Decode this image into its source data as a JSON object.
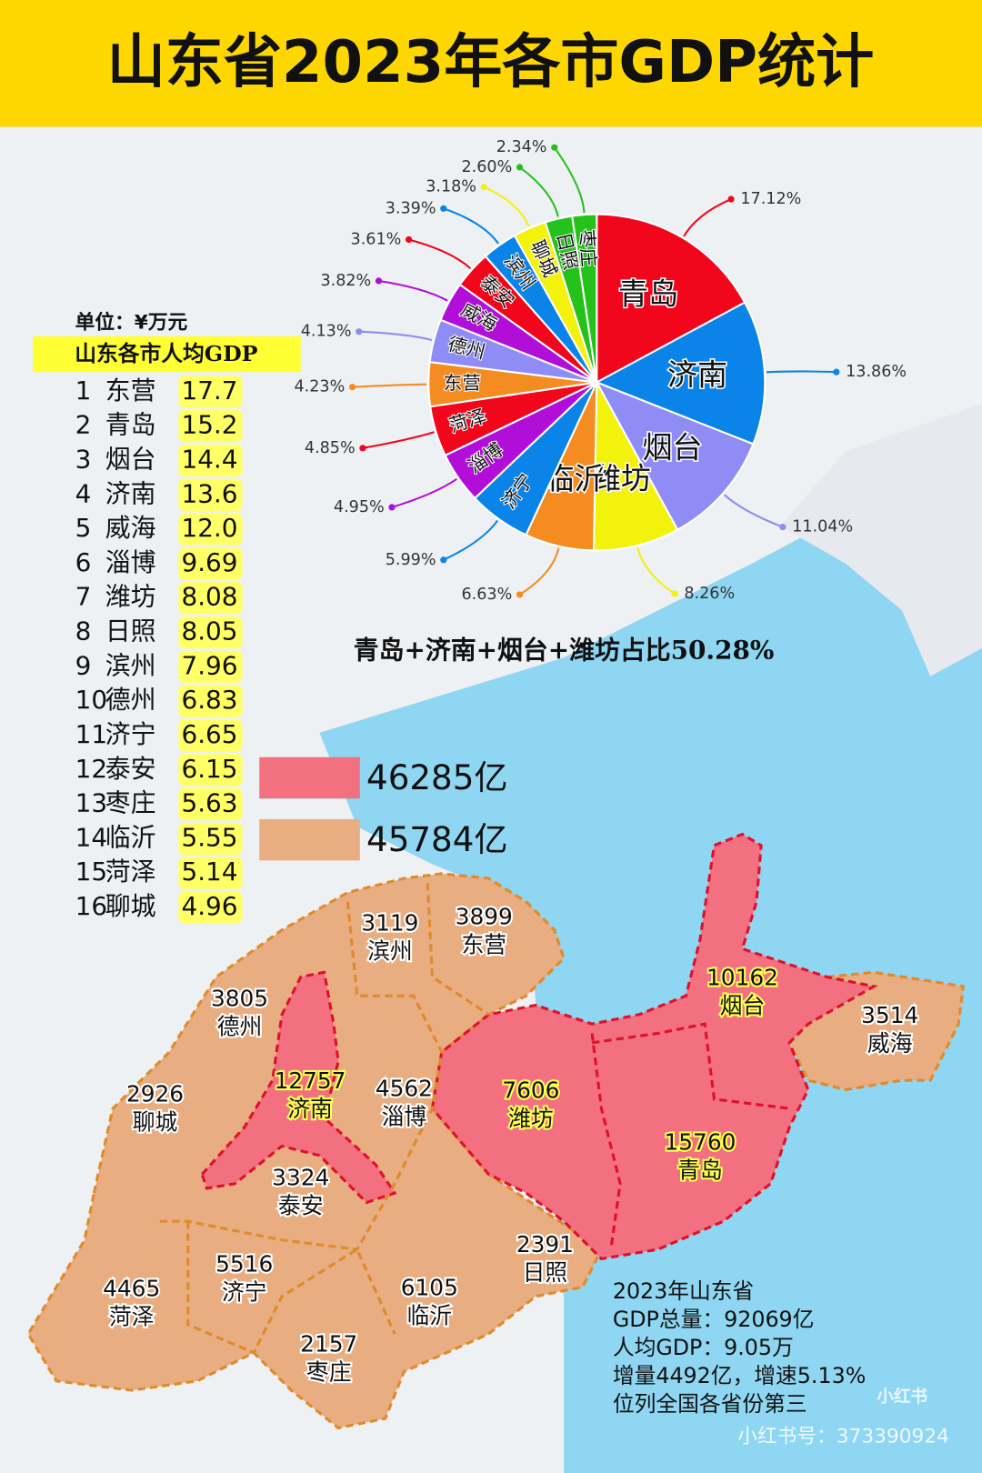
{
  "header": {
    "title": "山东省2023年各市GDP统计"
  },
  "chart_data": {
    "type": "pie",
    "categories": [
      "青岛",
      "济南",
      "烟台",
      "潍坊",
      "临沂",
      "济宁",
      "淄博",
      "菏泽",
      "东营",
      "德州",
      "威海",
      "泰安",
      "滨州",
      "聊城",
      "日照",
      "枣庄"
    ],
    "values": [
      17.12,
      13.86,
      11.04,
      8.26,
      6.63,
      5.99,
      4.95,
      4.85,
      4.23,
      4.13,
      3.82,
      3.61,
      3.39,
      3.18,
      2.6,
      2.34
    ],
    "value_labels": [
      "17.12%",
      "13.86%",
      "11.04%",
      "8.26%",
      "6.63%",
      "5.99%",
      "4.95%",
      "4.85%",
      "4.23%",
      "4.13%",
      "3.82%",
      "3.61%",
      "3.39%",
      "3.18%",
      "2.60%",
      "2.34%"
    ],
    "colors": [
      "#f2061c",
      "#0a84e8",
      "#8f8cf5",
      "#f2f20c",
      "#f58c22",
      "#0a84e8",
      "#b10fd9",
      "#f2061c",
      "#f58c22",
      "#8f8cf5",
      "#b10fd9",
      "#f2061c",
      "#0a84e8",
      "#f2f20c",
      "#25c21b",
      "#25c21b"
    ],
    "annotation": "青岛+济南+烟台+潍坊占比50.28%"
  },
  "ranking": {
    "unit": "单位：¥万元",
    "title": "山东各市人均GDP",
    "rows": [
      {
        "rank": "1",
        "city": "东营",
        "value": "17.7"
      },
      {
        "rank": "2",
        "city": "青岛",
        "value": "15.2"
      },
      {
        "rank": "3",
        "city": "烟台",
        "value": "14.4"
      },
      {
        "rank": "4",
        "city": "济南",
        "value": "13.6"
      },
      {
        "rank": "5",
        "city": "威海",
        "value": "12.0"
      },
      {
        "rank": "6",
        "city": "淄博",
        "value": "9.69"
      },
      {
        "rank": "7",
        "city": "潍坊",
        "value": "8.08"
      },
      {
        "rank": "8",
        "city": "日照",
        "value": "8.05"
      },
      {
        "rank": "9",
        "city": "滨州",
        "value": "7.96"
      },
      {
        "rank": "10",
        "city": "德州",
        "value": "6.83"
      },
      {
        "rank": "11",
        "city": "济宁",
        "value": "6.65"
      },
      {
        "rank": "12",
        "city": "泰安",
        "value": "6.15"
      },
      {
        "rank": "13",
        "city": "枣庄",
        "value": "5.63"
      },
      {
        "rank": "14",
        "city": "临沂",
        "value": "5.55"
      },
      {
        "rank": "15",
        "city": "菏泽",
        "value": "5.14"
      },
      {
        "rank": "16",
        "city": "聊城",
        "value": "4.96"
      }
    ]
  },
  "map": {
    "legend": [
      {
        "label": "46285亿",
        "color": "#f2707f"
      },
      {
        "label": "45784亿",
        "color": "#e8ad80"
      }
    ],
    "regions": [
      {
        "value": "3119",
        "name": "滨州"
      },
      {
        "value": "3899",
        "name": "东营"
      },
      {
        "value": "3805",
        "name": "德州"
      },
      {
        "value": "2926",
        "name": "聊城"
      },
      {
        "value": "12757",
        "name": "济南"
      },
      {
        "value": "4562",
        "name": "淄博"
      },
      {
        "value": "3324",
        "name": "泰安"
      },
      {
        "value": "7606",
        "name": "潍坊"
      },
      {
        "value": "10162",
        "name": "烟台"
      },
      {
        "value": "3514",
        "name": "威海"
      },
      {
        "value": "15760",
        "name": "青岛"
      },
      {
        "value": "2391",
        "name": "日照"
      },
      {
        "value": "5516",
        "name": "济宁"
      },
      {
        "value": "4465",
        "name": "菏泽"
      },
      {
        "value": "6105",
        "name": "临沂"
      },
      {
        "value": "2157",
        "name": "枣庄"
      }
    ],
    "summary": [
      "2023年山东省",
      "GDP总量：92069亿",
      "人均GDP：9.05万",
      "增量4492亿，增速5.13%",
      "位列全国各省份第三"
    ]
  },
  "watermark": {
    "logo": "小红书",
    "id": "小红书号：373390924"
  }
}
